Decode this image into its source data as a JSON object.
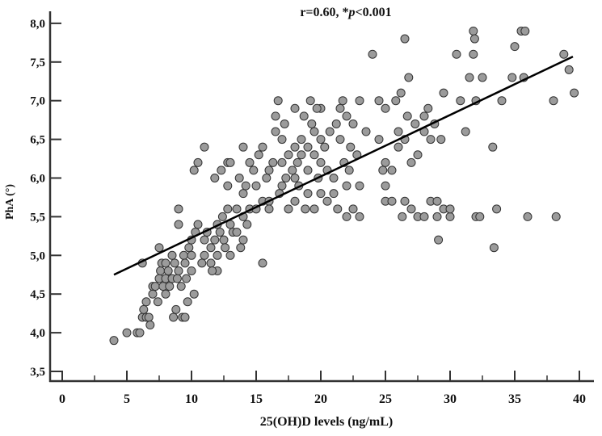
{
  "chart_data": {
    "type": "scatter",
    "title": "r=0.60, *p<0.001",
    "title_parts": {
      "prefix": "r=0.60, *",
      "italic": "p",
      "suffix": "<0.001"
    },
    "xlabel": "25(OH)D levels (ng/mL)",
    "ylabel": "PhA (°)",
    "xlim": [
      0,
      40
    ],
    "ylim": [
      3.5,
      8.0
    ],
    "x_ticks": [
      "0",
      "5",
      "10",
      "15",
      "20",
      "25",
      "30",
      "35",
      "40"
    ],
    "x_tick_values": [
      0,
      5,
      10,
      15,
      20,
      25,
      30,
      35,
      40
    ],
    "y_ticks": [
      "3,5",
      "4,0",
      "4,5",
      "5,0",
      "5,5",
      "6,0",
      "6,5",
      "7,0",
      "7,5",
      "8,0"
    ],
    "y_tick_values": [
      3.5,
      4.0,
      4.5,
      5.0,
      5.5,
      6.0,
      6.5,
      7.0,
      7.5,
      8.0
    ],
    "grid": false,
    "regression_line": {
      "x": [
        4,
        39.5
      ],
      "y": [
        4.75,
        7.57
      ]
    },
    "colors": {
      "point_fill": "#9b9b9b",
      "point_stroke": "#333333",
      "line": "#000000"
    },
    "points": [
      [
        4,
        3.9
      ],
      [
        5,
        4.0
      ],
      [
        5.8,
        4.0
      ],
      [
        6,
        4.0
      ],
      [
        6.2,
        4.2
      ],
      [
        6.3,
        4.3
      ],
      [
        6.5,
        4.2
      ],
      [
        6.5,
        4.4
      ],
      [
        6.7,
        4.2
      ],
      [
        6.8,
        4.1
      ],
      [
        7,
        4.5
      ],
      [
        7,
        4.6
      ],
      [
        7.2,
        4.6
      ],
      [
        7.4,
        4.4
      ],
      [
        7.5,
        4.7
      ],
      [
        7.6,
        4.8
      ],
      [
        7.7,
        4.9
      ],
      [
        7.8,
        4.6
      ],
      [
        8,
        4.7
      ],
      [
        8,
        4.9
      ],
      [
        8.2,
        4.8
      ],
      [
        8.3,
        4.6
      ],
      [
        8.5,
        4.7
      ],
      [
        8.5,
        5.0
      ],
      [
        8.6,
        4.2
      ],
      [
        8.7,
        4.9
      ],
      [
        8.8,
        4.3
      ],
      [
        8.9,
        4.7
      ],
      [
        9,
        5.6
      ],
      [
        9,
        5.4
      ],
      [
        9,
        4.8
      ],
      [
        9.2,
        4.6
      ],
      [
        9.3,
        4.2
      ],
      [
        9.4,
        5.0
      ],
      [
        9.5,
        4.9
      ],
      [
        9.5,
        4.2
      ],
      [
        9.6,
        4.7
      ],
      [
        9.8,
        5.1
      ],
      [
        10,
        5.2
      ],
      [
        10,
        5.0
      ],
      [
        10,
        4.8
      ],
      [
        10.2,
        4.5
      ],
      [
        6.2,
        4.9
      ],
      [
        7.5,
        5.1
      ],
      [
        8,
        4.5
      ],
      [
        9.7,
        4.4
      ],
      [
        10.5,
        5.4
      ],
      [
        10.5,
        6.2
      ],
      [
        10.2,
        6.1
      ],
      [
        11,
        6.4
      ],
      [
        10.3,
        5.3
      ],
      [
        10.8,
        4.9
      ],
      [
        11,
        5.0
      ],
      [
        11,
        5.2
      ],
      [
        11.2,
        5.3
      ],
      [
        11.5,
        5.1
      ],
      [
        11.5,
        4.9
      ],
      [
        11.8,
        5.2
      ],
      [
        12,
        5.4
      ],
      [
        12,
        5.0
      ],
      [
        12,
        4.8
      ],
      [
        12.2,
        5.3
      ],
      [
        12.4,
        5.5
      ],
      [
        12.5,
        5.2
      ],
      [
        12.8,
        5.6
      ],
      [
        12.8,
        5.9
      ],
      [
        12.8,
        6.2
      ],
      [
        13,
        6.2
      ],
      [
        13,
        5.4
      ],
      [
        13,
        5.0
      ],
      [
        13.2,
        5.3
      ],
      [
        13.5,
        5.6
      ],
      [
        13.5,
        5.3
      ],
      [
        13.7,
        6.0
      ],
      [
        14,
        6.4
      ],
      [
        14,
        5.8
      ],
      [
        14,
        5.5
      ],
      [
        14,
        5.2
      ],
      [
        14.2,
        5.9
      ],
      [
        14.5,
        5.6
      ],
      [
        14.5,
        6.2
      ],
      [
        14.8,
        6.1
      ],
      [
        15,
        5.6
      ],
      [
        15,
        5.9
      ],
      [
        15.2,
        6.3
      ],
      [
        15.5,
        6.4
      ],
      [
        15.5,
        5.7
      ],
      [
        15.8,
        6.0
      ],
      [
        16,
        6.1
      ],
      [
        16,
        5.7
      ],
      [
        16,
        5.6
      ],
      [
        15.5,
        4.9
      ],
      [
        11.8,
        6.0
      ],
      [
        12.3,
        6.1
      ],
      [
        14.3,
        5.4
      ],
      [
        13.8,
        5.1
      ],
      [
        12.6,
        5.1
      ],
      [
        11.6,
        4.8
      ],
      [
        16.5,
        6.6
      ],
      [
        16.5,
        6.8
      ],
      [
        16.7,
        7.0
      ],
      [
        17,
        6.5
      ],
      [
        17,
        6.2
      ],
      [
        17,
        5.9
      ],
      [
        17.3,
        6.0
      ],
      [
        17.5,
        6.3
      ],
      [
        17.5,
        5.6
      ],
      [
        17.8,
        6.1
      ],
      [
        18,
        6.9
      ],
      [
        18,
        6.4
      ],
      [
        18,
        6.0
      ],
      [
        18,
        5.7
      ],
      [
        18.2,
        6.2
      ],
      [
        18.5,
        6.5
      ],
      [
        18.5,
        6.3
      ],
      [
        18.7,
        6.8
      ],
      [
        18.8,
        5.6
      ],
      [
        19,
        6.4
      ],
      [
        19,
        6.1
      ],
      [
        19,
        5.8
      ],
      [
        19.2,
        7.0
      ],
      [
        19.3,
        6.7
      ],
      [
        19.5,
        6.6
      ],
      [
        19.5,
        6.3
      ],
      [
        19.5,
        5.6
      ],
      [
        19.8,
        6.0
      ],
      [
        20,
        6.5
      ],
      [
        20,
        6.9
      ],
      [
        20,
        6.2
      ],
      [
        20,
        5.8
      ],
      [
        20.3,
        6.4
      ],
      [
        20.5,
        5.7
      ],
      [
        20.5,
        6.1
      ],
      [
        21,
        6.0
      ],
      [
        21,
        5.8
      ],
      [
        21.2,
        6.7
      ],
      [
        21.5,
        6.9
      ],
      [
        21.5,
        6.5
      ],
      [
        21.7,
        7.0
      ],
      [
        21.8,
        6.2
      ],
      [
        22,
        5.9
      ],
      [
        22,
        5.5
      ],
      [
        22,
        6.8
      ],
      [
        22.2,
        6.1
      ],
      [
        22.5,
        5.6
      ],
      [
        22.5,
        6.7
      ],
      [
        22.8,
        6.3
      ],
      [
        23,
        5.5
      ],
      [
        23,
        5.9
      ],
      [
        23,
        7.0
      ],
      [
        23.5,
        6.6
      ],
      [
        16.3,
        6.2
      ],
      [
        16.8,
        5.8
      ],
      [
        17.2,
        6.7
      ],
      [
        18.3,
        5.9
      ],
      [
        19.7,
        6.9
      ],
      [
        20.7,
        6.6
      ],
      [
        21.3,
        5.6
      ],
      [
        22.3,
        6.4
      ],
      [
        24,
        7.6
      ],
      [
        24.5,
        7.0
      ],
      [
        24.5,
        6.5
      ],
      [
        25,
        6.9
      ],
      [
        25,
        6.2
      ],
      [
        25,
        5.9
      ],
      [
        25,
        5.7
      ],
      [
        25.5,
        6.1
      ],
      [
        25.5,
        5.7
      ],
      [
        25.8,
        7.0
      ],
      [
        26,
        6.4
      ],
      [
        26,
        6.6
      ],
      [
        26.2,
        7.1
      ],
      [
        26.3,
        5.5
      ],
      [
        26.5,
        7.8
      ],
      [
        26.5,
        6.5
      ],
      [
        26.5,
        5.7
      ],
      [
        26.8,
        7.3
      ],
      [
        27,
        6.2
      ],
      [
        27,
        5.6
      ],
      [
        27.3,
        6.7
      ],
      [
        27.5,
        6.3
      ],
      [
        27.5,
        5.5
      ],
      [
        28,
        6.8
      ],
      [
        28,
        6.6
      ],
      [
        28,
        5.5
      ],
      [
        28.3,
        6.9
      ],
      [
        28.5,
        6.5
      ],
      [
        28.5,
        5.7
      ],
      [
        28.8,
        6.7
      ],
      [
        29,
        5.7
      ],
      [
        29,
        5.5
      ],
      [
        29.1,
        5.2
      ],
      [
        29.3,
        6.5
      ],
      [
        29.5,
        7.1
      ],
      [
        29.5,
        5.6
      ],
      [
        30,
        5.5
      ],
      [
        30,
        5.6
      ],
      [
        30.5,
        7.6
      ],
      [
        30.8,
        7.0
      ],
      [
        31.2,
        6.6
      ],
      [
        31.5,
        7.3
      ],
      [
        31.8,
        7.9
      ],
      [
        31.8,
        7.6
      ],
      [
        32,
        5.5
      ],
      [
        32,
        7.0
      ],
      [
        32.3,
        5.5
      ],
      [
        32.5,
        7.3
      ],
      [
        33.3,
        6.4
      ],
      [
        33.4,
        5.1
      ],
      [
        33.6,
        5.6
      ],
      [
        34,
        7.0
      ],
      [
        34.8,
        7.3
      ],
      [
        35,
        7.7
      ],
      [
        35.5,
        7.9
      ],
      [
        35.8,
        7.9
      ],
      [
        35.7,
        7.3
      ],
      [
        36,
        5.5
      ],
      [
        38,
        7.0
      ],
      [
        38.2,
        5.5
      ],
      [
        38.8,
        7.6
      ],
      [
        39.2,
        7.4
      ],
      [
        39.6,
        7.1
      ],
      [
        31.9,
        7.8
      ],
      [
        26.7,
        6.8
      ],
      [
        24.8,
        6.1
      ]
    ]
  }
}
